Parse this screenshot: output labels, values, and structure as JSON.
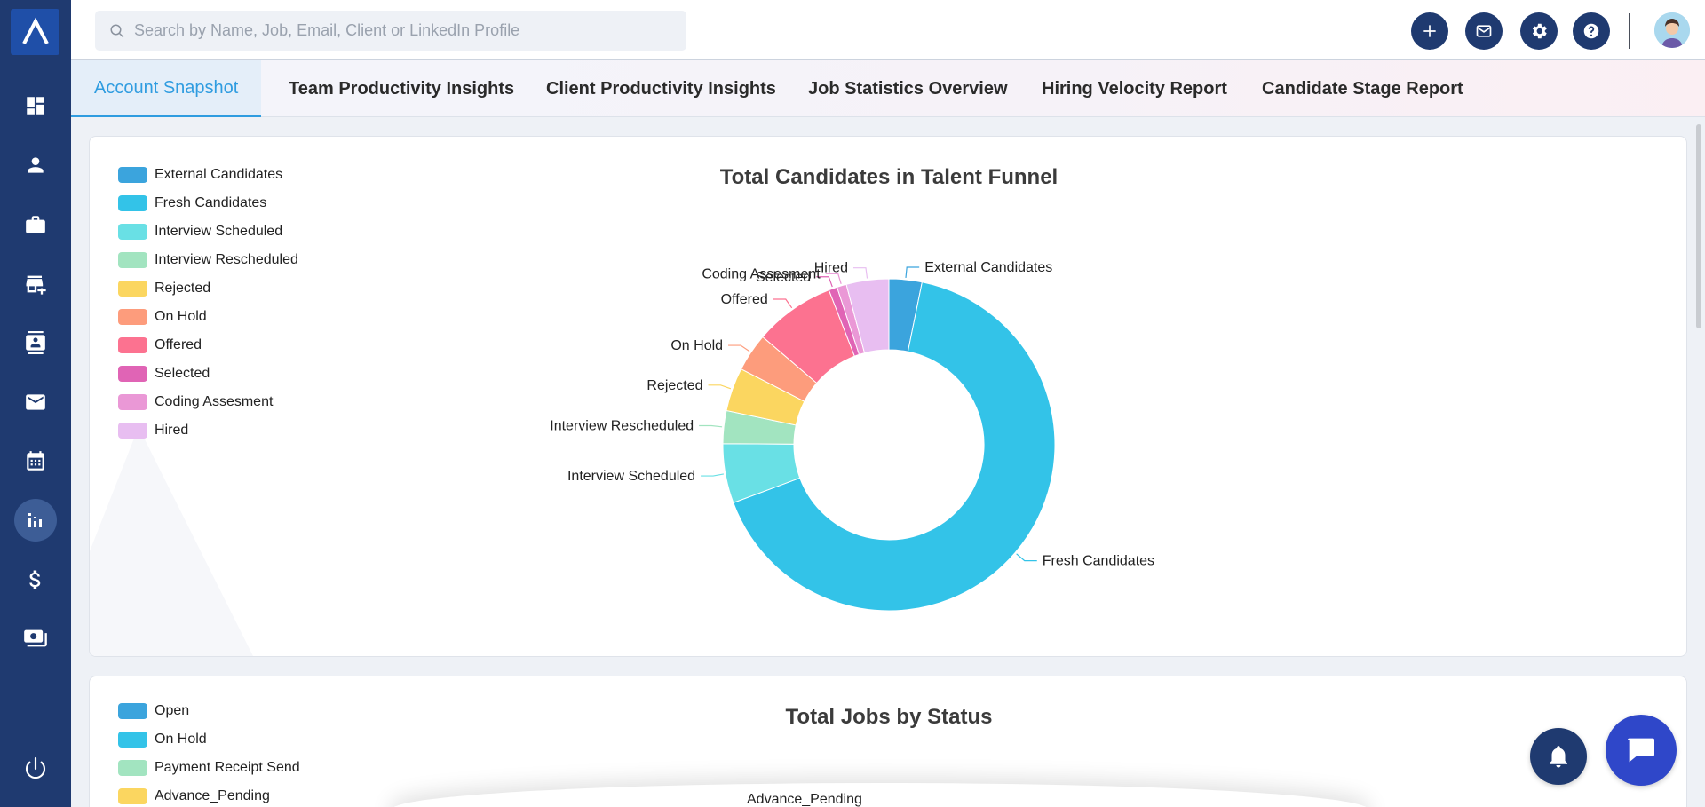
{
  "search": {
    "placeholder": "Search by Name, Job, Email, Client or LinkedIn Profile"
  },
  "sidebar": {
    "items": [
      {
        "icon": "dashboard-icon"
      },
      {
        "icon": "person-icon"
      },
      {
        "icon": "briefcase-icon"
      },
      {
        "icon": "store-add-icon"
      },
      {
        "icon": "contacts-icon"
      },
      {
        "icon": "mail-icon"
      },
      {
        "icon": "calendar-icon"
      },
      {
        "icon": "analytics-icon",
        "active": true
      },
      {
        "icon": "dollar-icon"
      },
      {
        "icon": "payments-icon"
      }
    ],
    "power_icon": "power-icon"
  },
  "header": {
    "buttons": [
      "plus-icon",
      "mail-icon",
      "gear-icon",
      "help-icon"
    ]
  },
  "tabs": [
    {
      "label": "Account Snapshot",
      "active": true
    },
    {
      "label": "Team Productivity Insights"
    },
    {
      "label": "Client Productivity Insights"
    },
    {
      "label": "Job Statistics Overview"
    },
    {
      "label": "Hiring Velocity Report"
    },
    {
      "label": "Candidate Stage Report"
    }
  ],
  "chart_data": [
    {
      "type": "pie",
      "title": "Total Candidates in Talent Funnel",
      "donut": true,
      "categories": [
        "External Candidates",
        "Fresh Candidates",
        "Interview Scheduled",
        "Interview Rescheduled",
        "Rejected",
        "On Hold",
        "Offered",
        "Selected",
        "Coding Assesment",
        "Hired"
      ],
      "values": [
        3.1,
        64.0,
        5.6,
        3.1,
        4.1,
        3.6,
        7.6,
        0.8,
        0.9,
        4.0
      ],
      "colors": [
        "#3ba4dd",
        "#33c3e8",
        "#69e0e5",
        "#a2e4c0",
        "#fbd660",
        "#fd9c7c",
        "#fc7290",
        "#e064b5",
        "#ea98d6",
        "#e8bef1"
      ],
      "legend_position": "top-left"
    },
    {
      "type": "pie",
      "title": "Total Jobs by Status",
      "categories": [
        "Open",
        "On Hold",
        "Payment Receipt Send",
        "Advance_Pending"
      ],
      "colors": [
        "#3ba4dd",
        "#33c3e8",
        "#a2e4c0",
        "#fbd660"
      ],
      "legend_position": "top-left"
    }
  ],
  "chart2_partial_label": "Advance_Pending",
  "fabs": {
    "bell": "bell-icon",
    "chat": "chat-icon"
  }
}
